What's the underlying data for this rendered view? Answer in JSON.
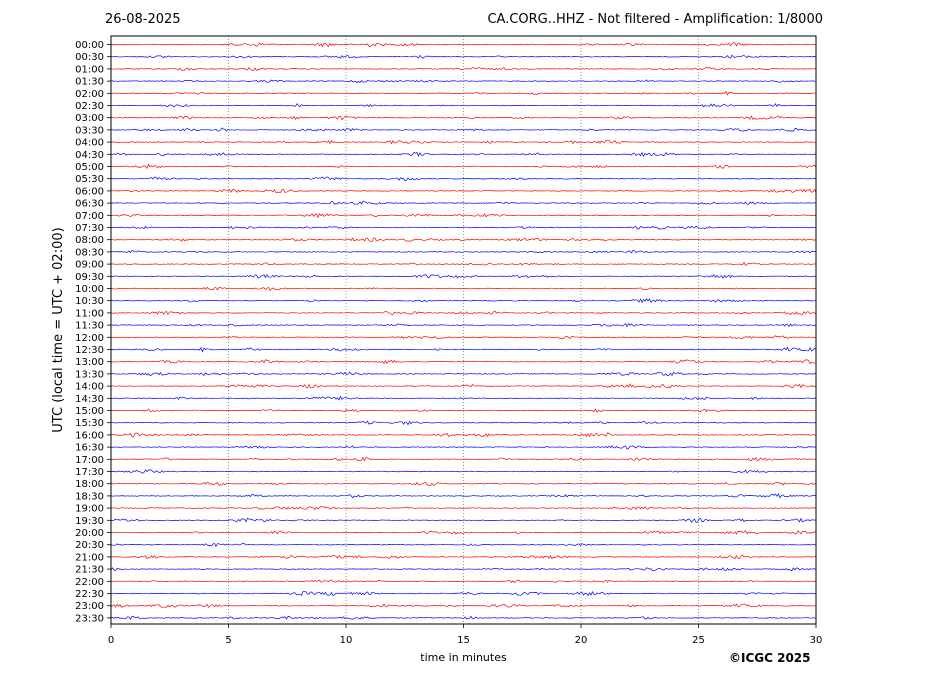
{
  "header": {
    "date": "26-08-2025",
    "title": "CA.CORG..HHZ - Not filtered - Amplification: 1/8000"
  },
  "footer": {
    "credit": "©ICGC 2025"
  },
  "chart_data": {
    "type": "line",
    "title": "CA.CORG..HHZ - Not filtered - Amplification: 1/8000",
    "xlabel": "time in minutes",
    "ylabel": "UTC (local time = UTC + 02:00)",
    "xlim": [
      0,
      30
    ],
    "xticks": [
      0,
      5,
      10,
      15,
      20,
      25,
      30
    ],
    "grid": "vertical-dotted",
    "row_labels": [
      "00:00",
      "00:30",
      "01:00",
      "01:30",
      "02:00",
      "02:30",
      "03:00",
      "03:30",
      "04:00",
      "04:30",
      "05:00",
      "05:30",
      "06:00",
      "06:30",
      "07:00",
      "07:30",
      "08:00",
      "08:30",
      "09:00",
      "09:30",
      "10:00",
      "10:30",
      "11:00",
      "11:30",
      "12:00",
      "12:30",
      "13:00",
      "13:30",
      "14:00",
      "14:30",
      "15:00",
      "15:30",
      "16:00",
      "16:30",
      "17:00",
      "17:30",
      "18:00",
      "18:30",
      "19:00",
      "19:30",
      "20:00",
      "20:30",
      "21:00",
      "21:30",
      "22:00",
      "22:30",
      "23:00",
      "23:30"
    ],
    "trace_colors": [
      "#ff0000",
      "#0000ff"
    ]
  }
}
